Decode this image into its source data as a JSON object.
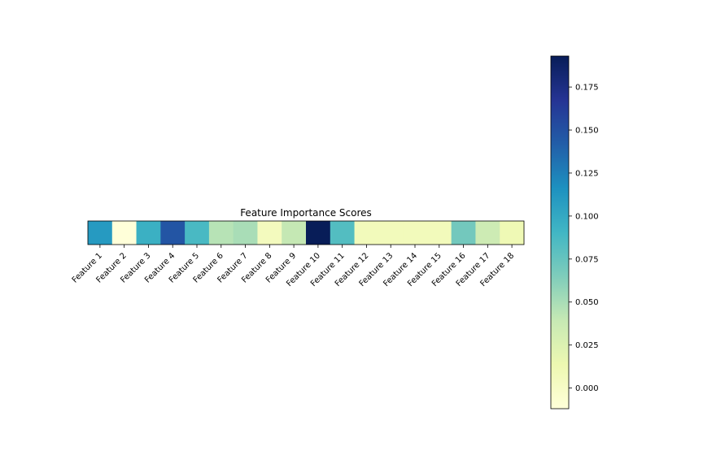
{
  "chart_data": {
    "type": "heatmap",
    "title": "Feature Importance Scores",
    "xlabel": "",
    "ylabel": "",
    "categories": [
      "Feature 1",
      "Feature 2",
      "Feature 3",
      "Feature 4",
      "Feature 5",
      "Feature 6",
      "Feature 7",
      "Feature 8",
      "Feature 9",
      "Feature 10",
      "Feature 11",
      "Feature 12",
      "Feature 13",
      "Feature 14",
      "Feature 15",
      "Feature 16",
      "Feature 17",
      "Feature 18"
    ],
    "values": [
      0.11,
      -0.012,
      0.095,
      0.147,
      0.087,
      0.045,
      0.05,
      0.005,
      0.04,
      0.193,
      0.083,
      0.007,
      0.007,
      0.007,
      0.007,
      0.07,
      0.035,
      0.011
    ],
    "colorbar": {
      "colormap": "YlGnBu",
      "range": [
        -0.012,
        0.193
      ],
      "ticks": [
        0.0,
        0.025,
        0.05,
        0.075,
        0.1,
        0.125,
        0.15,
        0.175
      ],
      "tick_labels": [
        "0.000",
        "0.025",
        "0.050",
        "0.075",
        "0.100",
        "0.125",
        "0.150",
        "0.175"
      ],
      "placement": "right"
    },
    "grid": false
  }
}
